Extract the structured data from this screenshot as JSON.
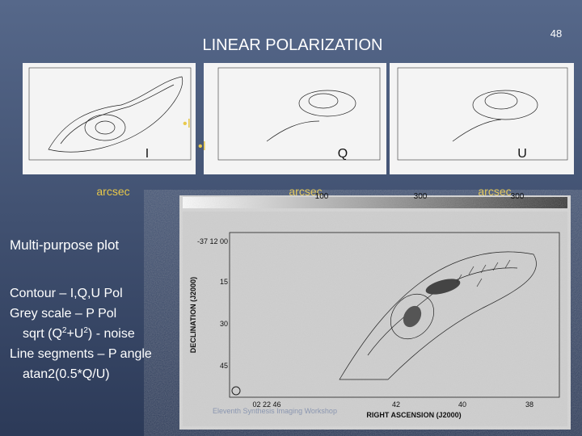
{
  "slide": {
    "number": "48",
    "title": "LINEAR POLARIZATION",
    "panels": [
      {
        "label": "I",
        "axis": "arcsec"
      },
      {
        "label": "Q",
        "axis": "arcsec"
      },
      {
        "label": "U",
        "axis": "arcsec"
      }
    ],
    "markers": [
      "•I",
      "•I"
    ],
    "text": {
      "heading": "Multi-purpose plot",
      "lines": [
        "Contour – I,Q,U Pol",
        "Grey scale – P Pol",
        [
          "sqrt (Q",
          "2",
          "+U",
          "2",
          ") - noise"
        ],
        "Line segments – P angle",
        "atan2(0.5*Q/U)"
      ]
    }
  },
  "image": {
    "y_label": "DECLINATION (J2000)",
    "x_label": "RIGHT ASCENSION (J2000)",
    "y_ticks": [
      "-37 12 00",
      "15",
      "30",
      "45"
    ],
    "x_ticks": [
      "02 22 46",
      "42",
      "40",
      "38"
    ],
    "top_ticks": [
      "100",
      "300",
      "300"
    ],
    "footer": "Eleventh Synthesis Imaging Workshop"
  }
}
